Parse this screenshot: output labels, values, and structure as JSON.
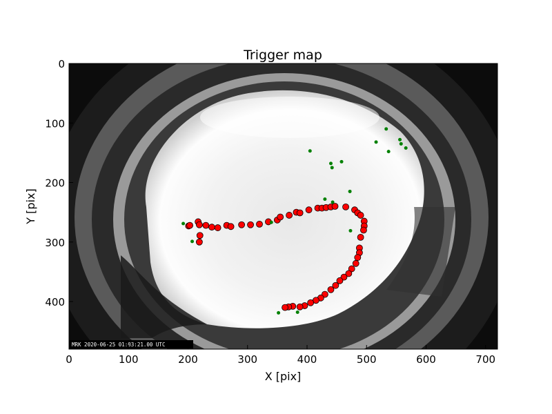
{
  "chart_data": {
    "type": "scatter",
    "title": "Trigger map",
    "xlabel": "X [pix]",
    "ylabel": "Y [pix]",
    "xlim": [
      0,
      720
    ],
    "ylim": [
      480,
      0
    ],
    "x_ticks": [
      0,
      100,
      200,
      300,
      400,
      500,
      600,
      700
    ],
    "y_ticks": [
      0,
      100,
      200,
      300,
      400
    ],
    "grid": false,
    "background_image": "all-sky fisheye camera frame",
    "timestamp_text": "MRK 2020-06-25 01:03:21.00 UTC",
    "series": [
      {
        "color": "#ff0000",
        "marker": "circle-large",
        "points": [
          [
            201,
            273
          ],
          [
            203,
            272
          ],
          [
            217,
            266
          ],
          [
            219,
            271
          ],
          [
            220,
            289
          ],
          [
            219,
            300
          ],
          [
            230,
            272
          ],
          [
            240,
            275
          ],
          [
            250,
            276
          ],
          [
            265,
            272
          ],
          [
            272,
            274
          ],
          [
            290,
            271
          ],
          [
            305,
            271
          ],
          [
            320,
            270
          ],
          [
            335,
            266
          ],
          [
            350,
            263
          ],
          [
            355,
            258
          ],
          [
            370,
            255
          ],
          [
            382,
            250
          ],
          [
            388,
            251
          ],
          [
            403,
            246
          ],
          [
            418,
            243
          ],
          [
            425,
            243
          ],
          [
            432,
            242
          ],
          [
            440,
            241
          ],
          [
            447,
            240
          ],
          [
            465,
            241
          ],
          [
            480,
            246
          ],
          [
            485,
            251
          ],
          [
            490,
            255
          ],
          [
            496,
            265
          ],
          [
            496,
            273
          ],
          [
            495,
            280
          ],
          [
            490,
            292
          ],
          [
            488,
            310
          ],
          [
            488,
            318
          ],
          [
            485,
            326
          ],
          [
            482,
            336
          ],
          [
            475,
            345
          ],
          [
            470,
            353
          ],
          [
            462,
            359
          ],
          [
            455,
            365
          ],
          [
            448,
            373
          ],
          [
            440,
            380
          ],
          [
            430,
            388
          ],
          [
            423,
            394
          ],
          [
            415,
            398
          ],
          [
            406,
            402
          ],
          [
            396,
            407
          ],
          [
            388,
            409
          ],
          [
            376,
            408
          ],
          [
            369,
            409
          ],
          [
            363,
            410
          ]
        ]
      },
      {
        "color": "#008000",
        "marker": "dot-small",
        "points": [
          [
            192,
            269
          ],
          [
            207,
            299
          ],
          [
            405,
            147
          ],
          [
            440,
            168
          ],
          [
            442,
            175
          ],
          [
            458,
            165
          ],
          [
            472,
            215
          ],
          [
            430,
            228
          ],
          [
            473,
            281
          ],
          [
            516,
            132
          ],
          [
            533,
            110
          ],
          [
            537,
            148
          ],
          [
            556,
            128
          ],
          [
            558,
            135
          ],
          [
            566,
            142
          ],
          [
            352,
            419
          ],
          [
            384,
            418
          ],
          [
            443,
            233
          ],
          [
            340,
            267
          ]
        ]
      }
    ]
  }
}
